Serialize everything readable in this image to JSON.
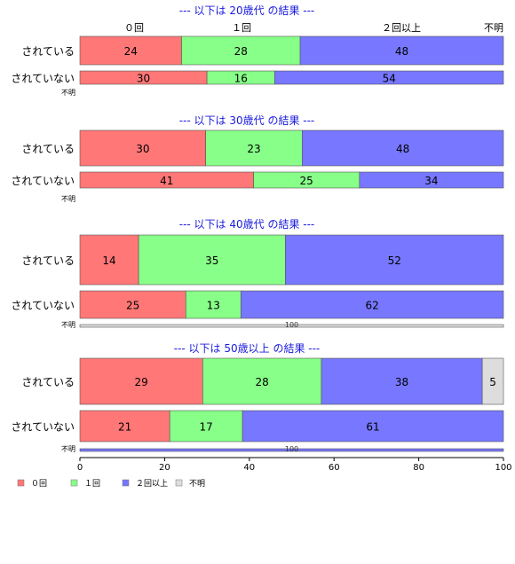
{
  "chart_data": {
    "type": "bar",
    "orientation": "horizontal",
    "stacked": true,
    "xlim": [
      0,
      100
    ],
    "x_ticks": [
      "0",
      "20",
      "40",
      "60",
      "80",
      "100"
    ],
    "top_category_labels": [
      "０回",
      "１回",
      "２回以上",
      "不明"
    ],
    "legend": {
      "placement": "bottom-left",
      "entries": [
        {
          "name": "０回",
          "color": "#ff7777"
        },
        {
          "name": "１回",
          "color": "#88ff88"
        },
        {
          "name": "２回以上",
          "color": "#7777ff"
        },
        {
          "name": "不明",
          "color": "#dddddd"
        }
      ]
    },
    "groups": [
      {
        "title": "--- 以下は 20歳代 の結果 ---",
        "rows": [
          {
            "label": "されている",
            "values": [
              24,
              28,
              48,
              0
            ]
          },
          {
            "label": "されていない",
            "values": [
              30,
              16,
              54,
              0
            ]
          },
          {
            "label": "不明",
            "values": [
              0,
              0,
              0,
              0
            ]
          }
        ]
      },
      {
        "title": "--- 以下は 30歳代 の結果 ---",
        "rows": [
          {
            "label": "されている",
            "values": [
              30,
              23,
              48,
              0
            ]
          },
          {
            "label": "されていない",
            "values": [
              41,
              25,
              34,
              0
            ]
          },
          {
            "label": "不明",
            "values": [
              0,
              0,
              0,
              0
            ]
          }
        ]
      },
      {
        "title": "--- 以下は 40歳代 の結果 ---",
        "rows": [
          {
            "label": "されている",
            "values": [
              14,
              35,
              52,
              0
            ]
          },
          {
            "label": "されていない",
            "values": [
              25,
              13,
              62,
              0
            ]
          },
          {
            "label": "不明",
            "values": [
              0,
              0,
              0,
              100
            ],
            "value_label": "100"
          }
        ]
      },
      {
        "title": "--- 以下は 50歳以上 の結果 ---",
        "rows": [
          {
            "label": "されている",
            "values": [
              29,
              28,
              38,
              5
            ]
          },
          {
            "label": "されていない",
            "values": [
              21,
              17,
              61,
              0
            ]
          },
          {
            "label": "不明",
            "values": [
              0,
              0,
              100,
              0
            ],
            "value_label": "100"
          }
        ]
      }
    ]
  }
}
